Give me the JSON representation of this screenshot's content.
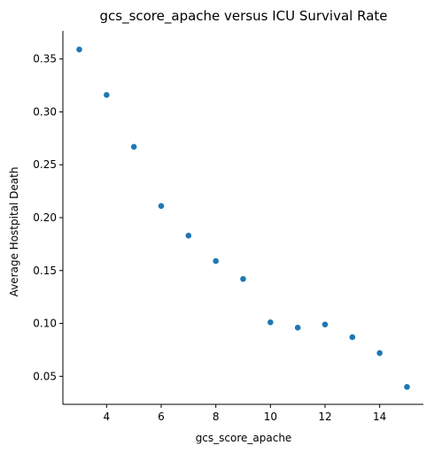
{
  "chart_data": {
    "type": "scatter",
    "title": "gcs_score_apache versus ICU Survival Rate",
    "xlabel": "gcs_score_apache",
    "ylabel": "Average Hostpital Death",
    "xlim": [
      2.4,
      15.6
    ],
    "ylim": [
      0.0235,
      0.3765
    ],
    "xticks": [
      4,
      6,
      8,
      10,
      12,
      14
    ],
    "yticks": [
      0.05,
      0.1,
      0.15,
      0.2,
      0.25,
      0.3,
      0.35
    ],
    "xtick_labels": [
      "4",
      "6",
      "8",
      "10",
      "12",
      "14"
    ],
    "ytick_labels": [
      "0.05",
      "0.10",
      "0.15",
      "0.20",
      "0.25",
      "0.30",
      "0.35"
    ],
    "marker_color": "#1f77b4",
    "grid": false,
    "spines": "left-bottom",
    "points": [
      {
        "x": 3,
        "y": 0.359
      },
      {
        "x": 4,
        "y": 0.316
      },
      {
        "x": 5,
        "y": 0.267
      },
      {
        "x": 6,
        "y": 0.211
      },
      {
        "x": 7,
        "y": 0.183
      },
      {
        "x": 8,
        "y": 0.159
      },
      {
        "x": 9,
        "y": 0.142
      },
      {
        "x": 10,
        "y": 0.101
      },
      {
        "x": 11,
        "y": 0.096
      },
      {
        "x": 12,
        "y": 0.099
      },
      {
        "x": 13,
        "y": 0.087
      },
      {
        "x": 14,
        "y": 0.072
      },
      {
        "x": 15,
        "y": 0.04
      }
    ]
  }
}
